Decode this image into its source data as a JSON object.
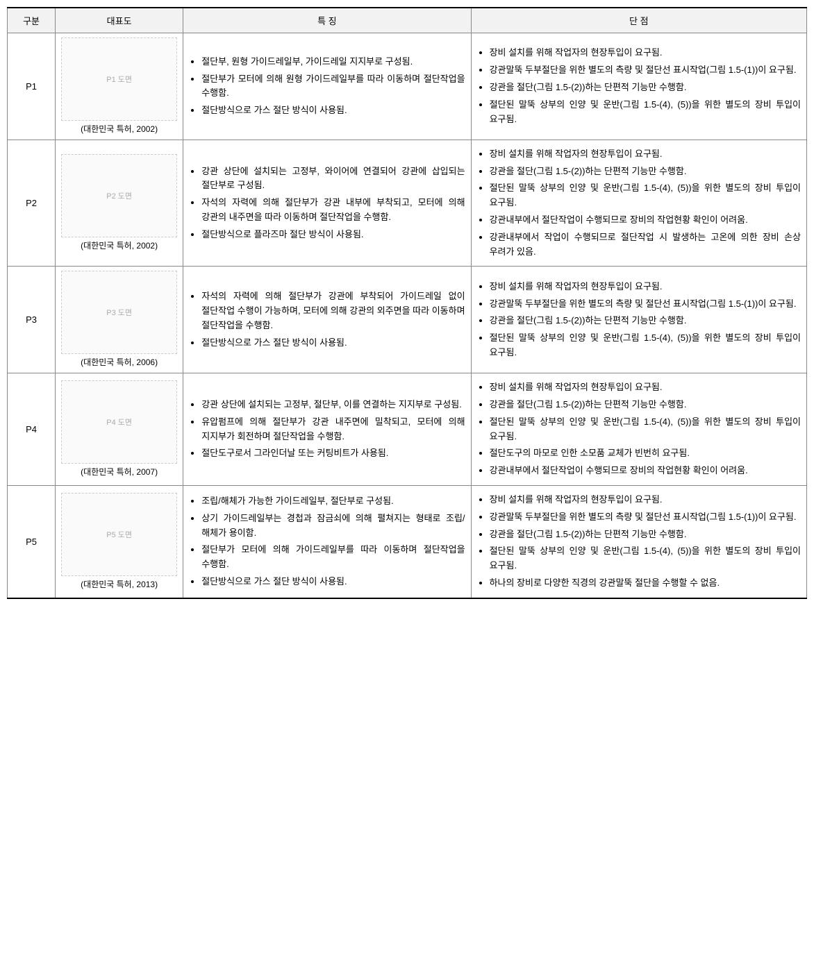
{
  "headers": {
    "id": "구분",
    "img": "대표도",
    "features": "특 징",
    "disadvantages": "단 점"
  },
  "rows": [
    {
      "id": "P1",
      "caption": "(대한민국 특허, 2002)",
      "imgAlt": "P1 도면",
      "features": [
        "절단부, 원형 가이드레일부, 가이드레일 지지부로 구성됨.",
        "절단부가 모터에 의해 원형 가이드레일부를 따라 이동하며 절단작업을 수행함.",
        "절단방식으로 가스 절단 방식이 사용됨."
      ],
      "disadvantages": [
        "장비 설치를 위해 작업자의 현장투입이 요구됨.",
        "강관말뚝 두부절단을 위한 별도의 측량 및 절단선 표시작업(그림 1.5-(1))이 요구됨.",
        "강관을 절단(그림 1.5-(2))하는 단편적 기능만 수행함.",
        "절단된 말뚝 상부의 인양 및 운반(그림 1.5-(4), (5))을 위한 별도의 장비 투입이 요구됨."
      ]
    },
    {
      "id": "P2",
      "caption": "(대한민국 특허, 2002)",
      "imgAlt": "P2 도면",
      "features": [
        "강관 상단에 설치되는 고정부, 와이어에 연결되어 강관에 삽입되는 절단부로 구성됨.",
        "자석의 자력에 의해 절단부가 강관 내부에 부착되고, 모터에 의해 강관의 내주면을 따라 이동하며 절단작업을 수행함.",
        "절단방식으로 플라즈마 절단 방식이 사용됨."
      ],
      "disadvantages": [
        "장비 설치를 위해 작업자의 현장투입이 요구됨.",
        "강관을 절단(그림 1.5-(2))하는 단편적 기능만 수행함.",
        "절단된 말뚝 상부의 인양 및 운반(그림 1.5-(4), (5))을 위한 별도의 장비 투입이 요구됨.",
        "강관내부에서 절단작업이 수행되므로 장비의 작업현황 확인이 어려움.",
        "강관내부에서 작업이 수행되므로 절단작업 시 발생하는 고온에 의한 장비 손상 우려가 있음."
      ]
    },
    {
      "id": "P3",
      "caption": "(대한민국 특허, 2006)",
      "imgAlt": "P3 도면",
      "features": [
        "자석의 자력에 의해 절단부가 강관에 부착되어 가이드레일 없이 절단작업 수행이 가능하며, 모터에 의해 강관의 외주면을 따라 이동하며 절단작업을 수행함.",
        "절단방식으로 가스 절단 방식이 사용됨."
      ],
      "disadvantages": [
        "장비 설치를 위해 작업자의 현장투입이 요구됨.",
        "강관말뚝 두부절단을 위한 별도의 측량 및 절단선 표시작업(그림 1.5-(1))이 요구됨.",
        "강관을 절단(그림 1.5-(2))하는 단편적 기능만 수행함.",
        "절단된 말뚝 상부의 인양 및 운반(그림 1.5-(4), (5))을 위한 별도의 장비 투입이 요구됨."
      ]
    },
    {
      "id": "P4",
      "caption": "(대한민국 특허, 2007)",
      "imgAlt": "P4 도면",
      "features": [
        "강관 상단에 설치되는 고정부, 절단부, 이를 연결하는 지지부로 구성됨.",
        "유압펌프에 의해 절단부가 강관 내주면에 밀착되고, 모터에 의해 지지부가 회전하며 절단작업을 수행함.",
        "절단도구로서 그라인더날 또는 커팅비트가 사용됨."
      ],
      "disadvantages": [
        "장비 설치를 위해 작업자의 현장투입이 요구됨.",
        "강관을 절단(그림 1.5-(2))하는 단편적 기능만 수행함.",
        "절단된 말뚝 상부의 인양 및 운반(그림 1.5-(4), (5))을 위한 별도의 장비 투입이 요구됨.",
        "절단도구의 마모로 인한 소모품 교체가 빈번히 요구됨.",
        "강관내부에서 절단작업이 수행되므로 장비의 작업현황 확인이 어려움."
      ]
    },
    {
      "id": "P5",
      "caption": "(대한민국 특허, 2013)",
      "imgAlt": "P5 도면",
      "features": [
        "조립/해체가 가능한 가이드레일부, 절단부로 구성됨.",
        "상기 가이드레일부는 경첩과 잠금쇠에 의해 펼쳐지는 형태로 조립/해체가 용이함.",
        "절단부가 모터에 의해 가이드레일부를 따라 이동하며 절단작업을 수행함.",
        "절단방식으로 가스 절단 방식이 사용됨."
      ],
      "disadvantages": [
        "장비 설치를 위해 작업자의 현장투입이 요구됨.",
        "강관말뚝 두부절단을 위한 별도의 측량 및 절단선 표시작업(그림 1.5-(1))이 요구됨.",
        "강관을 절단(그림 1.5-(2))하는 단편적 기능만 수행함.",
        "절단된 말뚝 상부의 인양 및 운반(그림 1.5-(4), (5))을 위한 별도의 장비 투입이 요구됨.",
        "하나의 장비로 다양한 직경의 강관말뚝 절단을 수행할 수 없음."
      ]
    }
  ]
}
